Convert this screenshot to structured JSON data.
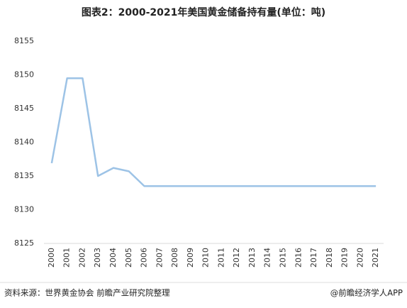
{
  "chart_data": {
    "type": "line",
    "title": "图表2：2000-2021年美国黄金储备持有量(单位：吨)",
    "categories": [
      "2000",
      "2001",
      "2002",
      "2003",
      "2004",
      "2005",
      "2006",
      "2007",
      "2008",
      "2009",
      "2010",
      "2011",
      "2012",
      "2013",
      "2014",
      "2015",
      "2016",
      "2017",
      "2018",
      "2019",
      "2020",
      "2021"
    ],
    "series": [
      {
        "color": "#9dc3e6",
        "values": [
          8136.9,
          8149.5,
          8149.5,
          8135.0,
          8136.2,
          8135.7,
          8133.5,
          8133.5,
          8133.5,
          8133.5,
          8133.5,
          8133.5,
          8133.5,
          8133.5,
          8133.5,
          8133.5,
          8133.5,
          8133.5,
          8133.5,
          8133.5,
          8133.5,
          8133.5
        ]
      }
    ],
    "ylim": [
      8125,
      8155
    ],
    "yticks": [
      8125,
      8130,
      8135,
      8140,
      8145,
      8150,
      8155
    ],
    "grid": false,
    "source": "资料来源：世界黄金协会 前瞻产业研究院整理",
    "credit": "@前瞻经济学人APP"
  }
}
